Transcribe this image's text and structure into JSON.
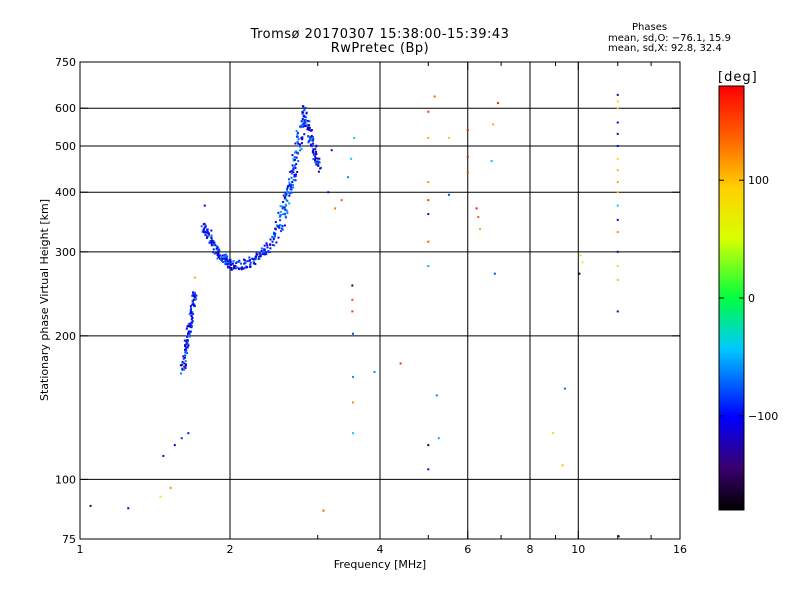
{
  "header": {
    "title": "Tromsø 20170307 15:38:00-15:39:43",
    "subtitle": "RwPretec (Bp)",
    "stats_title": "Phases",
    "stats_o": "mean, sd,O: −76.1, 15.9",
    "stats_x": "mean, sd,X:  92.8, 32.4"
  },
  "colorbar": {
    "label": "[deg]",
    "ticks": [
      {
        "value": 100,
        "label": "100"
      },
      {
        "value": 0,
        "label": "0"
      },
      {
        "value": -100,
        "label": "−100"
      }
    ],
    "range": [
      -180,
      180
    ]
  },
  "chart_data": {
    "type": "scatter",
    "xlabel": "Frequency [MHz]",
    "ylabel": "Stationary phase Virtual Height [km]",
    "xscale": "log",
    "yscale": "log",
    "xlim": [
      1,
      16
    ],
    "ylim": [
      75,
      750
    ],
    "xticks": [
      1,
      2,
      4,
      6,
      8,
      10,
      16
    ],
    "xtick_labels": [
      "1",
      "2",
      "4",
      "6",
      "8",
      "10",
      "16"
    ],
    "xgrid": [
      2,
      4,
      6,
      8,
      10
    ],
    "xminor": [
      3,
      5,
      7,
      9,
      12,
      14
    ],
    "yticks": [
      75,
      100,
      200,
      300,
      400,
      500,
      600,
      750
    ],
    "ytick_labels": [
      "75",
      "100",
      "200",
      "300",
      "400",
      "500",
      "600",
      "750"
    ],
    "ygrid": [
      100,
      200,
      300,
      400,
      500,
      600
    ],
    "grid": true,
    "color_scale": "phase in degrees, rainbow from -180 (black) to 180 (red)",
    "traces": [
      {
        "name": "O-trace lower",
        "x": [
          1.6,
          1.62,
          1.64,
          1.66,
          1.68,
          1.7
        ],
        "y": [
          170,
          185,
          200,
          215,
          235,
          250
        ],
        "phase": -95,
        "spread": 0.3
      },
      {
        "name": "O-trace bend",
        "x": [
          1.75,
          1.8,
          1.85,
          1.9,
          1.95,
          2.0,
          2.1,
          2.2,
          2.3,
          2.4
        ],
        "y": [
          340,
          330,
          310,
          295,
          288,
          283,
          282,
          287,
          297,
          312
        ],
        "phase": -95,
        "spread": 0.35
      },
      {
        "name": "O-trace rise",
        "x": [
          2.4,
          2.5,
          2.55,
          2.6,
          2.65,
          2.7,
          2.75,
          2.8
        ],
        "y": [
          310,
          340,
          370,
          400,
          430,
          470,
          520,
          580
        ],
        "phase": -85,
        "spread": 0.5
      },
      {
        "name": "O-trace top",
        "x": [
          2.8,
          2.85,
          2.9,
          2.95,
          3.0
        ],
        "y": [
          600,
          560,
          520,
          480,
          450
        ],
        "phase": -100,
        "spread": 0.4
      }
    ],
    "points": [
      {
        "x": 1.05,
        "y": 88,
        "phase": -150
      },
      {
        "x": 1.25,
        "y": 87,
        "phase": -110
      },
      {
        "x": 1.45,
        "y": 92,
        "phase": 80
      },
      {
        "x": 1.52,
        "y": 96,
        "phase": 120
      },
      {
        "x": 1.47,
        "y": 112,
        "phase": -110
      },
      {
        "x": 1.55,
        "y": 118,
        "phase": -100
      },
      {
        "x": 1.6,
        "y": 122,
        "phase": -90
      },
      {
        "x": 1.65,
        "y": 125,
        "phase": -95
      },
      {
        "x": 1.7,
        "y": 265,
        "phase": 110
      },
      {
        "x": 1.78,
        "y": 375,
        "phase": -100
      },
      {
        "x": 3.08,
        "y": 86,
        "phase": 140
      },
      {
        "x": 3.15,
        "y": 400,
        "phase": -110
      },
      {
        "x": 3.2,
        "y": 490,
        "phase": -120
      },
      {
        "x": 3.25,
        "y": 370,
        "phase": 130
      },
      {
        "x": 3.35,
        "y": 385,
        "phase": 140
      },
      {
        "x": 3.45,
        "y": 430,
        "phase": -60
      },
      {
        "x": 3.5,
        "y": 470,
        "phase": -40
      },
      {
        "x": 3.55,
        "y": 520,
        "phase": -30
      },
      {
        "x": 3.52,
        "y": 255,
        "phase": -160
      },
      {
        "x": 3.52,
        "y": 238,
        "phase": 150
      },
      {
        "x": 3.52,
        "y": 225,
        "phase": 160
      },
      {
        "x": 3.53,
        "y": 202,
        "phase": -80
      },
      {
        "x": 3.53,
        "y": 164,
        "phase": -60
      },
      {
        "x": 3.53,
        "y": 145,
        "phase": 120
      },
      {
        "x": 3.53,
        "y": 125,
        "phase": -40
      },
      {
        "x": 3.9,
        "y": 168,
        "phase": -60
      },
      {
        "x": 4.4,
        "y": 175,
        "phase": 160
      },
      {
        "x": 5.0,
        "y": 590,
        "phase": 160
      },
      {
        "x": 5.0,
        "y": 520,
        "phase": 110
      },
      {
        "x": 5.0,
        "y": 420,
        "phase": 120
      },
      {
        "x": 5.0,
        "y": 385,
        "phase": 160
      },
      {
        "x": 5.0,
        "y": 360,
        "phase": -120
      },
      {
        "x": 5.0,
        "y": 315,
        "phase": 140
      },
      {
        "x": 5.0,
        "y": 280,
        "phase": -50
      },
      {
        "x": 5.0,
        "y": 118,
        "phase": -160
      },
      {
        "x": 5.0,
        "y": 105,
        "phase": -110
      },
      {
        "x": 5.15,
        "y": 635,
        "phase": 140
      },
      {
        "x": 5.2,
        "y": 150,
        "phase": -60
      },
      {
        "x": 5.25,
        "y": 122,
        "phase": -50
      },
      {
        "x": 5.5,
        "y": 520,
        "phase": 100
      },
      {
        "x": 5.5,
        "y": 395,
        "phase": -80
      },
      {
        "x": 6.0,
        "y": 540,
        "phase": 170
      },
      {
        "x": 6.0,
        "y": 475,
        "phase": 175
      },
      {
        "x": 6.0,
        "y": 440,
        "phase": 160
      },
      {
        "x": 6.25,
        "y": 370,
        "phase": 170
      },
      {
        "x": 6.3,
        "y": 355,
        "phase": 140
      },
      {
        "x": 6.35,
        "y": 335,
        "phase": 110
      },
      {
        "x": 6.7,
        "y": 465,
        "phase": -40
      },
      {
        "x": 6.75,
        "y": 555,
        "phase": 110
      },
      {
        "x": 6.8,
        "y": 270,
        "phase": -80
      },
      {
        "x": 6.9,
        "y": 615,
        "phase": 165
      },
      {
        "x": 8.9,
        "y": 125,
        "phase": 40
      },
      {
        "x": 9.3,
        "y": 107,
        "phase": 100
      },
      {
        "x": 9.4,
        "y": 155,
        "phase": -70
      },
      {
        "x": 10.05,
        "y": 270,
        "phase": -170
      },
      {
        "x": 10.1,
        "y": 295,
        "phase": 80
      },
      {
        "x": 10.2,
        "y": 285,
        "phase": 60
      },
      {
        "x": 12.0,
        "y": 640,
        "phase": -120
      },
      {
        "x": 12.0,
        "y": 620,
        "phase": 90
      },
      {
        "x": 12.0,
        "y": 600,
        "phase": 100
      },
      {
        "x": 12.0,
        "y": 560,
        "phase": -110
      },
      {
        "x": 12.0,
        "y": 530,
        "phase": -120
      },
      {
        "x": 12.0,
        "y": 500,
        "phase": -100
      },
      {
        "x": 12.0,
        "y": 470,
        "phase": 90
      },
      {
        "x": 12.0,
        "y": 445,
        "phase": 100
      },
      {
        "x": 12.0,
        "y": 420,
        "phase": 110
      },
      {
        "x": 12.0,
        "y": 400,
        "phase": 100
      },
      {
        "x": 12.0,
        "y": 375,
        "phase": -40
      },
      {
        "x": 12.0,
        "y": 350,
        "phase": -100
      },
      {
        "x": 12.0,
        "y": 330,
        "phase": 120
      },
      {
        "x": 12.0,
        "y": 300,
        "phase": -120
      },
      {
        "x": 12.0,
        "y": 280,
        "phase": 90
      },
      {
        "x": 12.0,
        "y": 262,
        "phase": 100
      },
      {
        "x": 12.0,
        "y": 225,
        "phase": -130
      },
      {
        "x": 12.05,
        "y": 76,
        "phase": -160
      }
    ]
  }
}
